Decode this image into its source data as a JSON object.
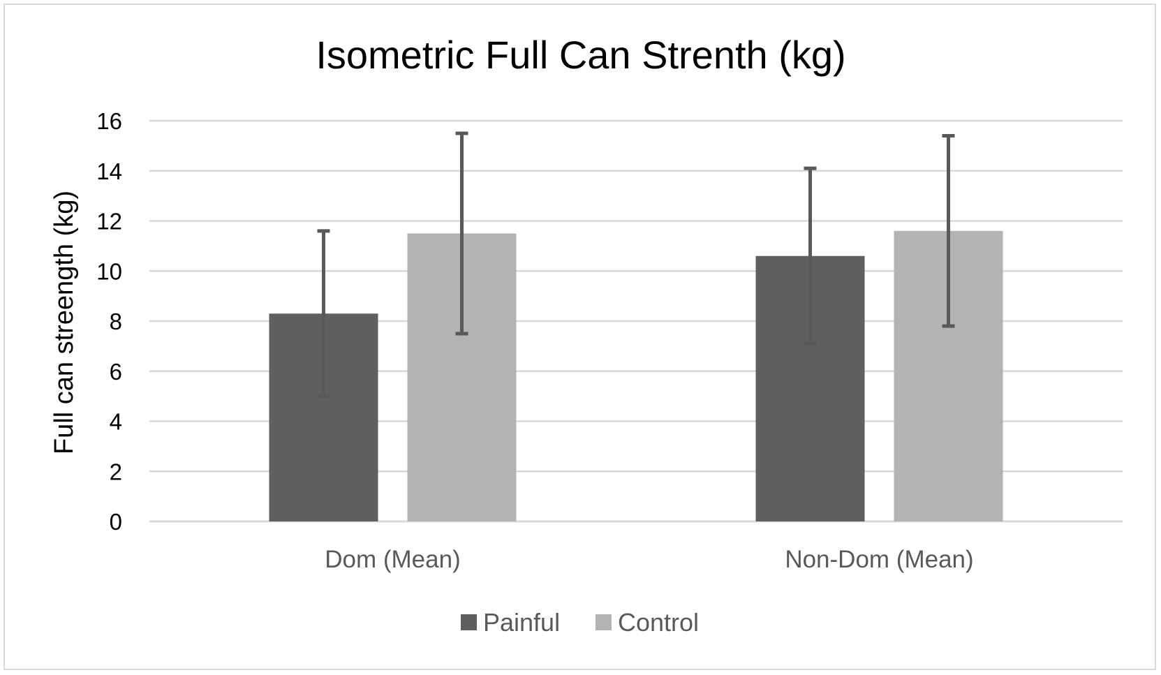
{
  "chart_data": {
    "type": "bar",
    "title": "Isometric Full Can Strenth (kg)",
    "xlabel": "",
    "ylabel": "Full can streength (kg)",
    "ylim": [
      0,
      16
    ],
    "yticks": [
      0,
      2,
      4,
      6,
      8,
      10,
      12,
      14,
      16
    ],
    "categories": [
      "Dom (Mean)",
      "Non-Dom (Mean)"
    ],
    "series": [
      {
        "name": "Painful",
        "color": "#5f5f5f",
        "values": [
          8.3,
          10.6
        ],
        "error_low": [
          5.0,
          7.1
        ],
        "error_high": [
          11.6,
          14.1
        ]
      },
      {
        "name": "Control",
        "color": "#b3b3b3",
        "values": [
          11.5,
          11.6
        ],
        "error_low": [
          7.5,
          7.8
        ],
        "error_high": [
          15.5,
          15.4
        ]
      }
    ],
    "grid": true,
    "legend_position": "bottom"
  }
}
